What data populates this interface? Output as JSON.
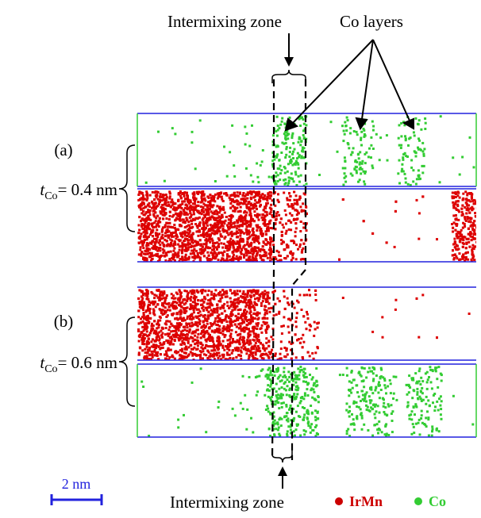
{
  "top_label": "Intermixing zone",
  "co_layers_label": "Co layers",
  "panel_a": {
    "label": "(a)",
    "thickness": {
      "symbol": "t",
      "subscript": "Co",
      "rest": "= 0.4 nm"
    }
  },
  "panel_b": {
    "label": "(b)",
    "thickness": {
      "symbol": "t",
      "subscript": "Co",
      "rest": "= 0.6 nm"
    }
  },
  "scale_bar": "2 nm",
  "bottom_label": "Intermixing zone",
  "legend": [
    "IrMn",
    "Co"
  ]
}
